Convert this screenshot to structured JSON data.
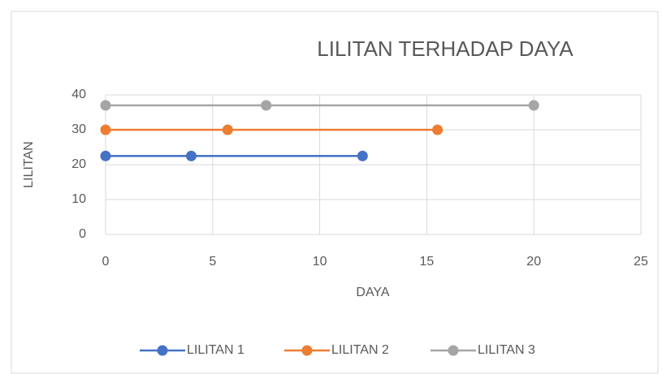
{
  "chart_data": {
    "type": "line",
    "title": "LILITAN TERHADAP DAYA",
    "xlabel": "DAYA",
    "ylabel": "LILITAN",
    "xlim": [
      0,
      25
    ],
    "xticks": [
      0,
      5,
      10,
      15,
      20,
      25
    ],
    "ylim": [
      0,
      40
    ],
    "yticks": [
      0,
      10,
      20,
      30,
      40
    ],
    "grid": true,
    "legend": "bottom",
    "series": [
      {
        "name": "LILITAN 1",
        "color": "#4472c4",
        "x": [
          0,
          4,
          12
        ],
        "values": [
          22.5,
          22.5,
          22.5
        ]
      },
      {
        "name": "LILITAN 2",
        "color": "#ed7d31",
        "x": [
          0,
          5.7,
          15.5
        ],
        "values": [
          30,
          30,
          30
        ]
      },
      {
        "name": "LILITAN 3",
        "color": "#a5a5a5",
        "x": [
          0,
          7.5,
          20
        ],
        "values": [
          37,
          37,
          37
        ]
      }
    ]
  }
}
